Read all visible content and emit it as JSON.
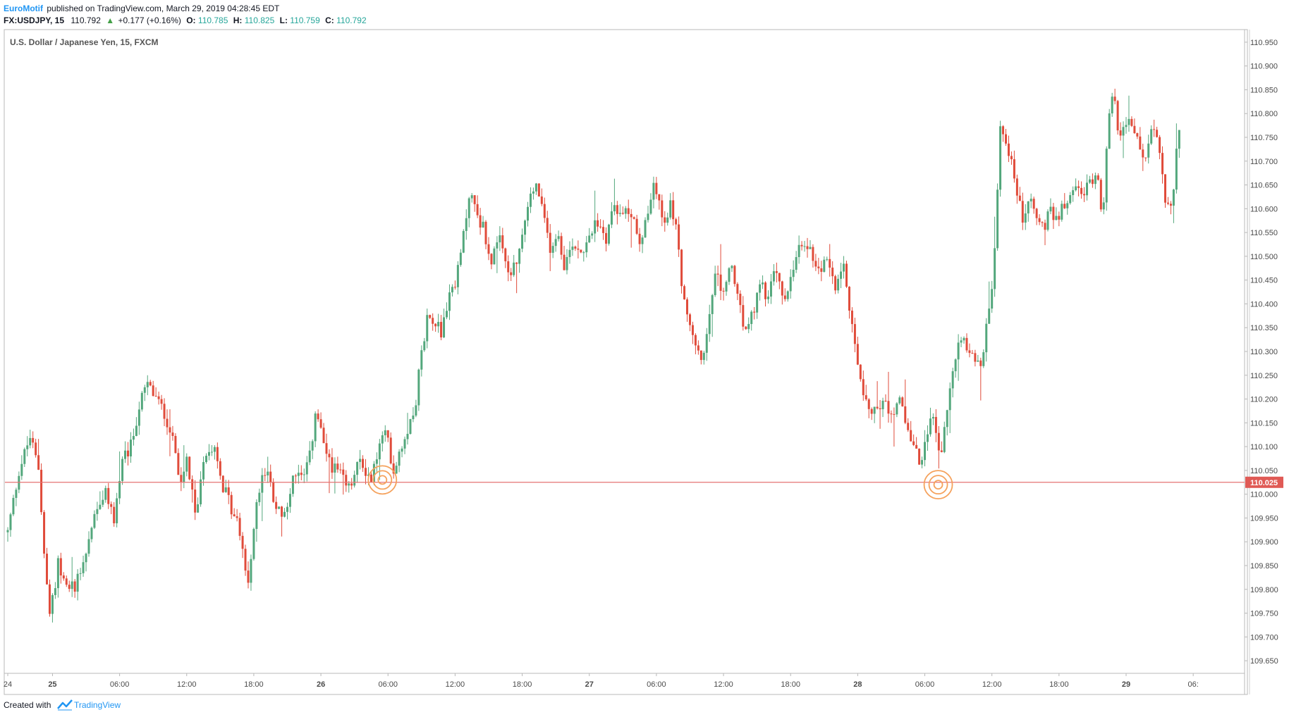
{
  "header": {
    "publisher": "EuroMotif",
    "published_text": "published on TradingView.com, March 29, 2019 04:28:45 EDT",
    "symbol": "FX:USDJPY, 15",
    "last": "110.792",
    "change": "+0.177 (+0.16%)",
    "o_label": "O:",
    "o_value": "110.785",
    "h_label": "H:",
    "h_value": "110.825",
    "l_label": "L:",
    "l_value": "110.759",
    "c_label": "C:",
    "c_value": "110.792"
  },
  "chart_title": "U.S. Dollar / Japanese Yen, 15, FXCM",
  "footer": {
    "created_with": "Created with",
    "brand": "TradingView"
  },
  "colors": {
    "up": "#53a77c",
    "down": "#e04b3a",
    "level_line": "#e57373",
    "price_tag": "#e05a55",
    "marker": "#f5a25d",
    "header_up": "#43a047"
  },
  "chart_data": {
    "type": "candlestick",
    "title": "U.S. Dollar / Japanese Yen, 15, FXCM",
    "timeframe": "15",
    "ylim": [
      109.625,
      110.975
    ],
    "y_ticks": [
      "110.950",
      "110.900",
      "110.850",
      "110.800",
      "110.750",
      "110.700",
      "110.650",
      "110.600",
      "110.550",
      "110.500",
      "110.450",
      "110.400",
      "110.350",
      "110.300",
      "110.250",
      "110.200",
      "110.150",
      "110.100",
      "110.050",
      "110.000",
      "109.950",
      "109.900",
      "109.850",
      "109.800",
      "109.750",
      "109.700",
      "109.650"
    ],
    "x_ticks": [
      {
        "label": "24",
        "bold": false,
        "t": 0.0
      },
      {
        "label": "25",
        "bold": true,
        "t": 4.0
      },
      {
        "label": "06:00",
        "bold": false,
        "t": 10.0
      },
      {
        "label": "12:00",
        "bold": false,
        "t": 16.0
      },
      {
        "label": "18:00",
        "bold": false,
        "t": 22.0
      },
      {
        "label": "26",
        "bold": true,
        "t": 28.0
      },
      {
        "label": "06:00",
        "bold": false,
        "t": 34.0
      },
      {
        "label": "12:00",
        "bold": false,
        "t": 40.0
      },
      {
        "label": "18:00",
        "bold": false,
        "t": 46.0
      },
      {
        "label": "27",
        "bold": true,
        "t": 52.0
      },
      {
        "label": "06:00",
        "bold": false,
        "t": 58.0
      },
      {
        "label": "12:00",
        "bold": false,
        "t": 64.0
      },
      {
        "label": "18:00",
        "bold": false,
        "t": 70.0
      },
      {
        "label": "28",
        "bold": true,
        "t": 76.0
      },
      {
        "label": "06:00",
        "bold": false,
        "t": 82.0
      },
      {
        "label": "12:00",
        "bold": false,
        "t": 88.0
      },
      {
        "label": "18:00",
        "bold": false,
        "t": 94.0
      },
      {
        "label": "29",
        "bold": true,
        "t": 100.0
      },
      {
        "label": "06:",
        "bold": false,
        "t": 106.0
      }
    ],
    "horizontal_line": {
      "value": 110.025,
      "label": "110.025"
    },
    "markers": [
      {
        "t": 33.5,
        "value": 110.03
      },
      {
        "t": 83.2,
        "value": 110.02
      }
    ],
    "anchor_path": [
      [
        0.0,
        109.92
      ],
      [
        1.0,
        110.05
      ],
      [
        2.0,
        110.12
      ],
      [
        2.8,
        110.05
      ],
      [
        3.4,
        109.82
      ],
      [
        3.8,
        109.74
      ],
      [
        4.5,
        109.86
      ],
      [
        5.2,
        109.8
      ],
      [
        6.0,
        109.81
      ],
      [
        7.0,
        109.88
      ],
      [
        8.0,
        109.98
      ],
      [
        8.8,
        110.0
      ],
      [
        9.5,
        109.95
      ],
      [
        10.3,
        110.07
      ],
      [
        11.0,
        110.1
      ],
      [
        11.8,
        110.19
      ],
      [
        12.5,
        110.23
      ],
      [
        13.3,
        110.2
      ],
      [
        14.0,
        110.17
      ],
      [
        14.8,
        110.12
      ],
      [
        15.4,
        110.0
      ],
      [
        16.0,
        110.07
      ],
      [
        16.8,
        109.95
      ],
      [
        17.5,
        110.08
      ],
      [
        18.5,
        110.11
      ],
      [
        19.2,
        110.02
      ],
      [
        20.0,
        109.97
      ],
      [
        20.8,
        109.92
      ],
      [
        21.5,
        109.8
      ],
      [
        22.0,
        109.94
      ],
      [
        22.7,
        110.04
      ],
      [
        23.3,
        110.05
      ],
      [
        24.0,
        109.97
      ],
      [
        24.8,
        109.95
      ],
      [
        25.6,
        110.05
      ],
      [
        26.5,
        110.03
      ],
      [
        27.0,
        110.08
      ],
      [
        27.6,
        110.18
      ],
      [
        28.2,
        110.1
      ],
      [
        29.0,
        110.06
      ],
      [
        29.7,
        110.04
      ],
      [
        30.5,
        110.01
      ],
      [
        31.5,
        110.07
      ],
      [
        32.5,
        110.03
      ],
      [
        33.2,
        110.1
      ],
      [
        33.8,
        110.13
      ],
      [
        34.5,
        110.05
      ],
      [
        35.0,
        110.09
      ],
      [
        35.8,
        110.14
      ],
      [
        36.5,
        110.2
      ],
      [
        37.0,
        110.3
      ],
      [
        37.5,
        110.37
      ],
      [
        38.2,
        110.37
      ],
      [
        38.8,
        110.34
      ],
      [
        39.5,
        110.42
      ],
      [
        40.2,
        110.46
      ],
      [
        40.8,
        110.55
      ],
      [
        41.3,
        110.64
      ],
      [
        41.8,
        110.6
      ],
      [
        42.5,
        110.56
      ],
      [
        43.2,
        110.49
      ],
      [
        44.0,
        110.53
      ],
      [
        44.8,
        110.46
      ],
      [
        45.5,
        110.48
      ],
      [
        46.2,
        110.57
      ],
      [
        46.8,
        110.63
      ],
      [
        47.3,
        110.65
      ],
      [
        47.9,
        110.58
      ],
      [
        48.5,
        110.52
      ],
      [
        49.2,
        110.55
      ],
      [
        49.8,
        110.48
      ],
      [
        50.5,
        110.53
      ],
      [
        51.3,
        110.51
      ],
      [
        52.0,
        110.55
      ],
      [
        52.8,
        110.57
      ],
      [
        53.5,
        110.54
      ],
      [
        54.2,
        110.61
      ],
      [
        55.0,
        110.58
      ],
      [
        55.7,
        110.6
      ],
      [
        56.5,
        110.54
      ],
      [
        57.2,
        110.58
      ],
      [
        57.8,
        110.66
      ],
      [
        58.3,
        110.6
      ],
      [
        58.8,
        110.56
      ],
      [
        59.3,
        110.62
      ],
      [
        59.8,
        110.55
      ],
      [
        60.3,
        110.44
      ],
      [
        60.8,
        110.36
      ],
      [
        61.4,
        110.32
      ],
      [
        62.0,
        110.28
      ],
      [
        62.7,
        110.36
      ],
      [
        63.3,
        110.46
      ],
      [
        64.0,
        110.42
      ],
      [
        64.7,
        110.49
      ],
      [
        65.3,
        110.4
      ],
      [
        66.0,
        110.34
      ],
      [
        66.7,
        110.38
      ],
      [
        67.3,
        110.45
      ],
      [
        68.0,
        110.41
      ],
      [
        68.7,
        110.48
      ],
      [
        69.3,
        110.4
      ],
      [
        70.0,
        110.45
      ],
      [
        70.7,
        110.51
      ],
      [
        71.3,
        110.53
      ],
      [
        72.0,
        110.5
      ],
      [
        72.7,
        110.47
      ],
      [
        73.3,
        110.5
      ],
      [
        74.0,
        110.44
      ],
      [
        74.7,
        110.5
      ],
      [
        75.2,
        110.4
      ],
      [
        75.8,
        110.32
      ],
      [
        76.3,
        110.22
      ],
      [
        77.0,
        110.19
      ],
      [
        77.7,
        110.17
      ],
      [
        78.3,
        110.2
      ],
      [
        79.0,
        110.17
      ],
      [
        79.7,
        110.2
      ],
      [
        80.3,
        110.15
      ],
      [
        81.0,
        110.1
      ],
      [
        81.6,
        110.06
      ],
      [
        82.2,
        110.12
      ],
      [
        82.8,
        110.17
      ],
      [
        83.4,
        110.08
      ],
      [
        84.0,
        110.17
      ],
      [
        84.6,
        110.27
      ],
      [
        85.2,
        110.34
      ],
      [
        85.8,
        110.31
      ],
      [
        86.4,
        110.29
      ],
      [
        87.0,
        110.27
      ],
      [
        87.6,
        110.36
      ],
      [
        88.0,
        110.43
      ],
      [
        88.4,
        110.58
      ],
      [
        88.8,
        110.8
      ],
      [
        89.2,
        110.74
      ],
      [
        89.7,
        110.7
      ],
      [
        90.2,
        110.64
      ],
      [
        90.8,
        110.57
      ],
      [
        91.4,
        110.63
      ],
      [
        92.0,
        110.58
      ],
      [
        92.6,
        110.56
      ],
      [
        93.2,
        110.59
      ],
      [
        93.8,
        110.58
      ],
      [
        94.4,
        110.61
      ],
      [
        95.0,
        110.63
      ],
      [
        95.6,
        110.64
      ],
      [
        96.2,
        110.63
      ],
      [
        96.8,
        110.66
      ],
      [
        97.4,
        110.68
      ],
      [
        97.9,
        110.58
      ],
      [
        98.3,
        110.76
      ],
      [
        98.8,
        110.84
      ],
      [
        99.3,
        110.77
      ],
      [
        99.8,
        110.76
      ],
      [
        100.3,
        110.78
      ],
      [
        100.8,
        110.76
      ],
      [
        101.3,
        110.72
      ],
      [
        101.8,
        110.7
      ],
      [
        102.3,
        110.77
      ],
      [
        102.8,
        110.74
      ],
      [
        103.3,
        110.65
      ],
      [
        103.8,
        110.59
      ],
      [
        104.2,
        110.64
      ],
      [
        104.6,
        110.76
      ],
      [
        104.9,
        110.79
      ]
    ]
  }
}
